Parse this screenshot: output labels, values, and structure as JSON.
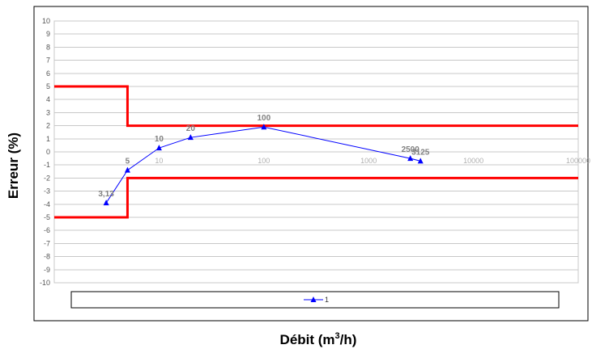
{
  "chart_data": {
    "type": "line",
    "xlabel_prefix": "Débit (m",
    "xlabel_sup": "3",
    "xlabel_suffix": "/h)",
    "ylabel": "Erreur (%)",
    "xscale": "log",
    "xlim": [
      1,
      100000
    ],
    "ylim": [
      -10,
      10
    ],
    "x_ticks": [
      "10",
      "100",
      "1000",
      "10000",
      "100000"
    ],
    "y_ticks": [
      "10",
      "9",
      "8",
      "7",
      "6",
      "5",
      "4",
      "3",
      "2",
      "1",
      "0",
      "-1",
      "-2",
      "-3",
      "-4",
      "-5",
      "-6",
      "-7",
      "-8",
      "-9",
      "-10"
    ],
    "grid": true,
    "legend_position": "bottom",
    "series": [
      {
        "name": "1",
        "color": "#0000ff",
        "marker": "triangle",
        "points": [
          {
            "x": 3.13,
            "y": -3.9,
            "label": "3,13"
          },
          {
            "x": 5,
            "y": -1.4,
            "label": "5"
          },
          {
            "x": 10,
            "y": 0.3,
            "label": "10"
          },
          {
            "x": 20,
            "y": 1.1,
            "label": "20"
          },
          {
            "x": 100,
            "y": 1.9,
            "label": "100"
          },
          {
            "x": 2500,
            "y": -0.5,
            "label": "2500"
          },
          {
            "x": 3125,
            "y": -0.7,
            "label": "3125"
          }
        ]
      }
    ],
    "limits": [
      {
        "color": "#ff0000",
        "points": [
          [
            1,
            5
          ],
          [
            5,
            5
          ],
          [
            5,
            2
          ],
          [
            100000,
            2
          ]
        ]
      },
      {
        "color": "#ff0000",
        "points": [
          [
            1,
            -5
          ],
          [
            5,
            -5
          ],
          [
            5,
            -2
          ],
          [
            100000,
            -2
          ]
        ]
      }
    ]
  }
}
